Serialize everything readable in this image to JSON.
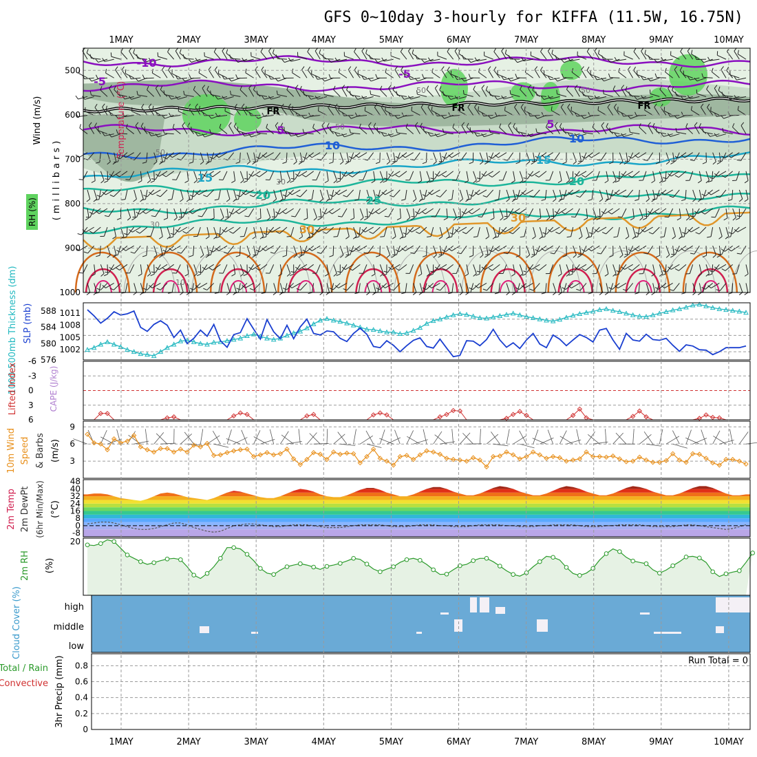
{
  "title": "GFS 0~10day 3-hourly for KIFFA (11.5W, 16.75N)",
  "date_labels": [
    "1MAY",
    "2MAY",
    "3MAY",
    "4MAY",
    "5MAY",
    "6MAY",
    "7MAY",
    "8MAY",
    "9MAY",
    "10MAY"
  ],
  "colors": {
    "rh_dark": "#9fb7a0",
    "rh_mid": "#c9dcc9",
    "rh_light": "#e6f1e4",
    "rh_green": "#5fd35f",
    "purple": "#8a0fbf",
    "blue": "#1f5fd6",
    "cyan": "#1aa6c8",
    "teal": "#1cb59a",
    "orange": "#e0962a",
    "dark_orange": "#d46a1c",
    "red": "#d02050",
    "slp": "#1a3fd0",
    "thickness": "#22b8c0",
    "li": "#d03030",
    "wind": "#e8901c",
    "rh2m": "#2a9a2a",
    "cloud": "#6aaad6",
    "cloud_white": "#f4f0f6"
  },
  "chart_data": [
    {
      "type": "contour",
      "name": "upper-air",
      "ylabel": "(millibars)",
      "side_labels": [
        "Wind (m/s)",
        "Temperature (°C)",
        "RH (%)"
      ],
      "ylim": [
        1000,
        450
      ],
      "yticks": [
        500,
        600,
        700,
        800,
        900,
        1000
      ],
      "freezing_label": "FR",
      "temp_labels": [
        "-10",
        "-5",
        "5",
        "10",
        "15",
        "20",
        "25",
        "30"
      ],
      "rh_labels": [
        "50",
        "30",
        "10"
      ]
    },
    {
      "type": "line",
      "name": "slp-thickness",
      "ylabel_left": "1000-500mb Thickness (dm)",
      "ylabel_right": "SLP (mb)",
      "yticks_left": [
        576,
        580,
        584,
        588
      ],
      "yticks_right": [
        1002,
        1005,
        1008,
        1011
      ],
      "series": [
        {
          "name": "SLP",
          "values": [
            1011.8,
            1010.3,
            1008.5,
            1009.7,
            1011.3,
            1010.5,
            1010.8,
            1011.5,
            1007.5,
            1006.5,
            1008.2,
            1009.1,
            1008.0,
            1005.0,
            1006.8,
            1003.5,
            1004.8,
            1006.8,
            1005.3,
            1008.2,
            1004.2,
            1002.6,
            1005.7,
            1006.2,
            1009.6,
            1007.0,
            1004.6,
            1009.4,
            1006.4,
            1004.7,
            1008.0,
            1004.7,
            1007.6,
            1009.5,
            1006.0,
            1005.6,
            1006.6,
            1006.4,
            1004.8,
            1004.0,
            1006.0,
            1007.3,
            1005.8,
            1002.8,
            1002.5,
            1004.2,
            1003.1,
            1001.5,
            1003.0,
            1004.3,
            1004.9,
            1002.8,
            1002.4,
            1004.6,
            1002.4,
            1000.3,
            1000.6,
            1004.2,
            1004.1,
            1003.0,
            1004.5,
            1007.0,
            1004.4,
            1002.6,
            1003.7,
            1002.3,
            1004.4,
            1006.0,
            1003.4,
            1002.5,
            1005.6,
            1004.6,
            1003.0,
            1004.4,
            1005.7,
            1005.0,
            1003.9,
            1006.8,
            1007.2,
            1004.4,
            1002.1,
            1006.0,
            1004.4,
            1004.1,
            1005.8,
            1004.5,
            1004.3,
            1004.8,
            1003.1,
            1001.6,
            1003.2,
            1002.9,
            1002.0,
            1001.9,
            1000.8,
            1001.5,
            1002.5,
            1002.5,
            1002.5,
            1002.9
          ]
        },
        {
          "name": "1000-500mb Thickness",
          "values": [
            578.5,
            579.0,
            579.8,
            580.4,
            579.8,
            579.2,
            578.5,
            578.0,
            577.5,
            577.3,
            577.0,
            578.0,
            579.0,
            579.8,
            580.6,
            580.8,
            580.4,
            580.0,
            579.8,
            580.3,
            580.4,
            580.7,
            581.0,
            581.3,
            581.9,
            582.3,
            581.8,
            581.3,
            581.0,
            581.3,
            582.0,
            582.6,
            583.0,
            583.8,
            584.8,
            585.7,
            586.1,
            585.7,
            585.4,
            585.0,
            584.5,
            584.0,
            583.5,
            583.4,
            583.1,
            582.8,
            582.8,
            582.4,
            582.6,
            583.2,
            583.9,
            584.9,
            585.6,
            586.0,
            586.5,
            587.0,
            587.3,
            587.1,
            586.7,
            586.3,
            586.2,
            586.5,
            586.8,
            587.1,
            587.4,
            587.0,
            586.6,
            586.3,
            586.0,
            585.7,
            585.5,
            585.9,
            586.4,
            586.9,
            587.3,
            587.6,
            587.9,
            588.3,
            588.5,
            588.1,
            587.8,
            587.4,
            587.0,
            586.7,
            586.6,
            587.0,
            587.4,
            587.8,
            588.2,
            588.5,
            588.9,
            589.4,
            589.6,
            589.2,
            588.8,
            588.5,
            588.3,
            588.1,
            587.9,
            587.6
          ]
        }
      ]
    },
    {
      "type": "line",
      "name": "lifted-index-cape",
      "ylabel_left": "Lifted Index",
      "ylabel_right": "CAPE (J/kg)",
      "yticks": [
        -6,
        -3,
        0,
        3,
        6
      ],
      "series": [
        {
          "name": "Lifted Index",
          "values": [
            6,
            6,
            4.7,
            4.7,
            6,
            6,
            6,
            6,
            6,
            6,
            6,
            6,
            5.6,
            5.4,
            6,
            6,
            6,
            6,
            6,
            6,
            6,
            6,
            5.2,
            4.6,
            4.9,
            6,
            6,
            6,
            6,
            6,
            6,
            6,
            6,
            5.2,
            4.9,
            6,
            6,
            6,
            6,
            6,
            6,
            6,
            6,
            5.0,
            4.6,
            5.0,
            6,
            6,
            6,
            6,
            6,
            6,
            6,
            5.4,
            4.9,
            4.1,
            4.2,
            6,
            6,
            6,
            6,
            6,
            6,
            5.7,
            4.9,
            4.3,
            5.1,
            6,
            6,
            6,
            6,
            6,
            6,
            5.1,
            3.8,
            5.6,
            6,
            6,
            6,
            6,
            6,
            6,
            5.3,
            4.2,
            5.4,
            6,
            6,
            6,
            6,
            6,
            6,
            6,
            5.7,
            5.0,
            5.5,
            5.6,
            6,
            6,
            6,
            6
          ]
        }
      ]
    },
    {
      "type": "line",
      "name": "10m-wind",
      "ylabel": "10m Wind Speed & Barbs (m/s)",
      "yticks": [
        3,
        6,
        9
      ],
      "series": [
        {
          "name": "10m Wind Speed",
          "values": [
            7.7,
            6.2,
            6.0,
            5.0,
            6.9,
            6.2,
            6.5,
            7.5,
            5.5,
            5.0,
            4.6,
            5.2,
            5.2,
            4.6,
            5.1,
            4.6,
            5.8,
            5.5,
            6.1,
            4.0,
            4.1,
            4.5,
            4.8,
            5.0,
            5.1,
            3.8,
            4.1,
            4.5,
            4.1,
            4.3,
            5.1,
            3.4,
            2.4,
            3.3,
            4.5,
            4.2,
            3.3,
            4.6,
            4.2,
            4.4,
            4.3,
            2.7,
            3.8,
            5.1,
            3.5,
            3.0,
            2.3,
            3.8,
            4.0,
            3.3,
            4.1,
            4.8,
            4.6,
            4.2,
            3.5,
            3.3,
            3.2,
            3.0,
            3.6,
            3.2,
            2.0,
            3.8,
            3.9,
            4.6,
            4.1,
            3.4,
            3.8,
            4.6,
            4.1,
            3.5,
            3.8,
            3.6,
            3.0,
            3.2,
            3.4,
            4.6,
            3.8,
            3.8,
            3.7,
            3.9,
            3.4,
            2.9,
            3.0,
            3.7,
            3.2,
            2.8,
            2.8,
            3.1,
            4.3,
            3.2,
            2.8,
            4.3,
            4.2,
            3.5,
            2.7,
            2.3,
            3.3,
            3.3,
            3.0,
            2.5
          ]
        }
      ]
    },
    {
      "type": "area",
      "name": "2m-temp",
      "ylabel": "2m Temp 2m DewPt (6hr Min/Max) (°C)",
      "yticks": [
        -8,
        0,
        8,
        16,
        24,
        32,
        40,
        48
      ],
      "series": [
        {
          "name": "2m Temp",
          "values": [
            34,
            35,
            35,
            34,
            32,
            30,
            29,
            28,
            27,
            29,
            32,
            35,
            36,
            35,
            33,
            31,
            30,
            29,
            28,
            30,
            33,
            36,
            38,
            37,
            35,
            33,
            31,
            30,
            30,
            32,
            35,
            38,
            40,
            39,
            37,
            34,
            32,
            31,
            31,
            33,
            36,
            39,
            41,
            41,
            39,
            36,
            34,
            32,
            32,
            34,
            37,
            40,
            42,
            42,
            40,
            37,
            35,
            33,
            33,
            35,
            38,
            41,
            43,
            42,
            40,
            37,
            35,
            33,
            33,
            35,
            38,
            41,
            43,
            42,
            40,
            37,
            35,
            33,
            33,
            35,
            38,
            41,
            43,
            42,
            40,
            37,
            35,
            33,
            33,
            35,
            38,
            41,
            43,
            43,
            41,
            38,
            35,
            33,
            33,
            34
          ]
        },
        {
          "name": "2m DewPt",
          "values": [
            2,
            3,
            4,
            4,
            3,
            1,
            -1,
            -3,
            -4,
            -4,
            -3,
            -1,
            1,
            3,
            3,
            1,
            -2,
            -4,
            -6,
            -7,
            -6,
            -3,
            0,
            1,
            2,
            2,
            1,
            0,
            -1,
            -1,
            0,
            1,
            1,
            1,
            0,
            -1,
            -2,
            -2,
            -2,
            -1,
            0,
            1,
            1,
            1,
            1,
            0,
            -1,
            -1,
            -1,
            0,
            1,
            1,
            1,
            0,
            0,
            -1,
            -1,
            -1,
            0,
            1,
            1,
            1,
            1,
            0,
            0,
            -1,
            -1,
            -1,
            0,
            0,
            1,
            1,
            1,
            1,
            0,
            -1,
            -1,
            -1,
            0,
            0,
            1,
            1,
            1,
            1,
            0,
            -1,
            -1,
            -1,
            -1,
            0,
            1,
            1,
            0,
            -1,
            -2,
            -3,
            -4,
            -3,
            -1,
            1
          ]
        }
      ]
    },
    {
      "type": "line",
      "name": "2m-rh",
      "ylabel": "2m RH (%)",
      "yticks": [
        20
      ],
      "series": [
        {
          "name": "2m RH",
          "values": [
            19.0,
            18.8,
            19.4,
            20.5,
            20.0,
            18.0,
            16.0,
            15.0,
            14.0,
            13.2,
            13.7,
            14.3,
            14.8,
            15.0,
            14.6,
            12.5,
            10.0,
            9.0,
            10.5,
            12.5,
            15.0,
            18.2,
            18.2,
            17.8,
            16.2,
            14.3,
            12.0,
            10.6,
            10.2,
            11.5,
            12.5,
            13.0,
            13.4,
            13.0,
            12.4,
            11.7,
            12.6,
            13.0,
            13.5,
            14.2,
            15.0,
            14.7,
            13.3,
            11.8,
            11.0,
            11.8,
            12.5,
            13.8,
            14.6,
            15.0,
            14.4,
            13.2,
            11.6,
            10.2,
            10.3,
            11.6,
            12.8,
            13.2,
            14.3,
            15.0,
            15.0,
            14.0,
            12.7,
            11.3,
            10.2,
            9.7,
            10.7,
            12.5,
            14.0,
            15.6,
            15.3,
            14.5,
            12.3,
            10.5,
            9.9,
            10.6,
            12.0,
            14.5,
            16.4,
            17.8,
            17.0,
            15.3,
            14.2,
            13.8,
            13.4,
            11.6,
            10.6,
            11.5,
            12.8,
            14.0,
            15.4,
            15.6,
            15.1,
            13.8,
            11.0,
            9.6,
            10.4,
            10.9,
            11.3,
            13.8,
            16.6
          ]
        }
      ]
    },
    {
      "type": "bar",
      "name": "cloud-cover",
      "ylabel": "Cloud Cover (%)",
      "levels": [
        "high",
        "middle",
        "low"
      ]
    },
    {
      "type": "bar",
      "name": "precip",
      "ylabel": "3hr Precip (mm)",
      "legend": [
        "Total / Rain",
        "Convective"
      ],
      "yticks": [
        0,
        0.2,
        0.4,
        0.6,
        0.8
      ],
      "run_total": "Run Total = 0",
      "values": []
    }
  ]
}
